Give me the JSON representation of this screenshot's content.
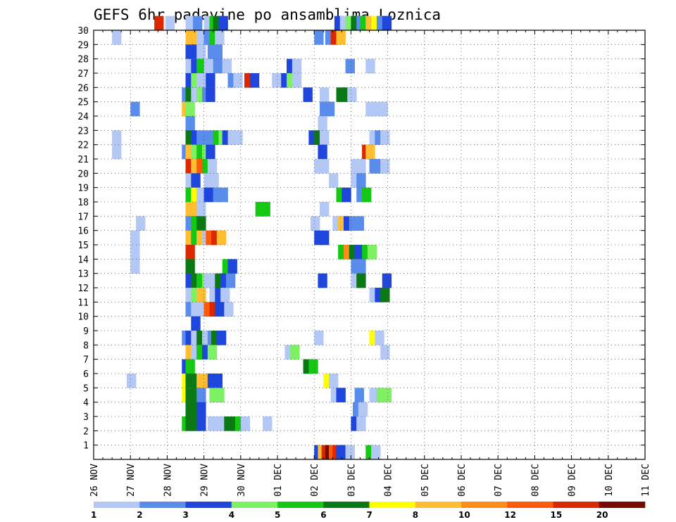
{
  "chart_data": {
    "type": "heatmap",
    "title": "GEFS 6hr padavine po ansamblima Loznica",
    "xlabel": "",
    "ylabel": "",
    "x_tick_labels": [
      "26 NOV",
      "27 NOV",
      "28 NOV",
      "29 NOV",
      "30 NOV",
      "01 DEC",
      "02 DEC",
      "03 DEC",
      "04 DEC",
      "05 DEC",
      "06 DEC",
      "07 DEC",
      "08 DEC",
      "09 DEC",
      "10 DEC",
      "11 DEC"
    ],
    "y_tick_labels": [
      "1",
      "2",
      "3",
      "4",
      "5",
      "6",
      "7",
      "8",
      "9",
      "10",
      "11",
      "12",
      "13",
      "14",
      "15",
      "16",
      "17",
      "18",
      "19",
      "20",
      "21",
      "22",
      "23",
      "24",
      "25",
      "26",
      "27",
      "28",
      "29",
      "30"
    ],
    "x_steps_per_day": 4,
    "y_range": [
      0,
      30
    ],
    "grid": true,
    "legend_position": "bottom",
    "color_scale": [
      {
        "label": "1",
        "color": "#b4c8f5"
      },
      {
        "label": "2",
        "color": "#5a8ceb"
      },
      {
        "label": "3",
        "color": "#1e46dc"
      },
      {
        "label": "4",
        "color": "#7df064"
      },
      {
        "label": "5",
        "color": "#14c814"
      },
      {
        "label": "6",
        "color": "#0a7814"
      },
      {
        "label": "7",
        "color": "#ffff00"
      },
      {
        "label": "8",
        "color": "#ffbe32"
      },
      {
        "label": "10",
        "color": "#ff8c14"
      },
      {
        "label": "12",
        "color": "#ff5a0a"
      },
      {
        "label": "15",
        "color": "#dc2800"
      },
      {
        "label": "20",
        "color": "#780a00"
      }
    ],
    "cells": [
      [
        6.6,
        30,
        10
      ],
      [
        7.8,
        30,
        0
      ],
      [
        10,
        30,
        0
      ],
      [
        10.8,
        30,
        1
      ],
      [
        12,
        30,
        0
      ],
      [
        12.6,
        30,
        4
      ],
      [
        13,
        30,
        5
      ],
      [
        13.6,
        30,
        2
      ],
      [
        26.2,
        30,
        2
      ],
      [
        26.8,
        30,
        0
      ],
      [
        27.4,
        30,
        3
      ],
      [
        28,
        30,
        5
      ],
      [
        28.6,
        30,
        1
      ],
      [
        29,
        30,
        4
      ],
      [
        29.6,
        30,
        7
      ],
      [
        30.2,
        30,
        6
      ],
      [
        30.8,
        30,
        1
      ],
      [
        31.4,
        30,
        2
      ],
      [
        2,
        29,
        0
      ],
      [
        10,
        29,
        7
      ],
      [
        10.6,
        29,
        7
      ],
      [
        11.2,
        29,
        0
      ],
      [
        12,
        29,
        1
      ],
      [
        12.6,
        29,
        4
      ],
      [
        13.2,
        29,
        0
      ],
      [
        24,
        29,
        1
      ],
      [
        25.2,
        29,
        1
      ],
      [
        25.8,
        29,
        10
      ],
      [
        26.4,
        29,
        7
      ],
      [
        10,
        28,
        2
      ],
      [
        10.6,
        28,
        2
      ],
      [
        11.2,
        28,
        0
      ],
      [
        12.4,
        28,
        1
      ],
      [
        13,
        28,
        1
      ],
      [
        10,
        27,
        0
      ],
      [
        10.6,
        27,
        2
      ],
      [
        11.2,
        27,
        4
      ],
      [
        12,
        27,
        0
      ],
      [
        13,
        27,
        1
      ],
      [
        14,
        27,
        0
      ],
      [
        21,
        27,
        2
      ],
      [
        21.6,
        27,
        0
      ],
      [
        27.4,
        27,
        1
      ],
      [
        29.6,
        27,
        0
      ],
      [
        10,
        26,
        2
      ],
      [
        10.6,
        26,
        3
      ],
      [
        11.2,
        26,
        0
      ],
      [
        12.2,
        26,
        2
      ],
      [
        14.6,
        26,
        1
      ],
      [
        15.2,
        26,
        0
      ],
      [
        16.4,
        26,
        10
      ],
      [
        17,
        26,
        2
      ],
      [
        19.4,
        26,
        0
      ],
      [
        20.4,
        26,
        2
      ],
      [
        21,
        26,
        3
      ],
      [
        21.6,
        26,
        0
      ],
      [
        9.6,
        25,
        1
      ],
      [
        10,
        25,
        5
      ],
      [
        10.6,
        25,
        0
      ],
      [
        11.2,
        25,
        3
      ],
      [
        11.8,
        25,
        1
      ],
      [
        12.2,
        25,
        2
      ],
      [
        22.8,
        25,
        2
      ],
      [
        24.6,
        25,
        0
      ],
      [
        26.4,
        25,
        5
      ],
      [
        27,
        25,
        5
      ],
      [
        27.6,
        25,
        0
      ],
      [
        4,
        24,
        1
      ],
      [
        9.6,
        24,
        7
      ],
      [
        10,
        24,
        3
      ],
      [
        24.6,
        24,
        1
      ],
      [
        25.2,
        24,
        1
      ],
      [
        29.6,
        24,
        0
      ],
      [
        30.4,
        24,
        0
      ],
      [
        31,
        24,
        0
      ],
      [
        10,
        23,
        1
      ],
      [
        24.4,
        23,
        0
      ],
      [
        2,
        22,
        0
      ],
      [
        10,
        22,
        5
      ],
      [
        10.6,
        22,
        2
      ],
      [
        11.2,
        22,
        1
      ],
      [
        11.8,
        22,
        1
      ],
      [
        12.6,
        22,
        1
      ],
      [
        13,
        22,
        4
      ],
      [
        13.6,
        22,
        3
      ],
      [
        14,
        22,
        2
      ],
      [
        14.6,
        22,
        0
      ],
      [
        15.2,
        22,
        0
      ],
      [
        23.4,
        22,
        2
      ],
      [
        24,
        22,
        5
      ],
      [
        24.6,
        22,
        0
      ],
      [
        30,
        22,
        0
      ],
      [
        30.6,
        22,
        1
      ],
      [
        31.2,
        22,
        0
      ],
      [
        2,
        21,
        0
      ],
      [
        9.6,
        21,
        1
      ],
      [
        10,
        21,
        7
      ],
      [
        10.6,
        21,
        3
      ],
      [
        11.2,
        21,
        4
      ],
      [
        11.8,
        21,
        3
      ],
      [
        12.2,
        21,
        2
      ],
      [
        24.4,
        21,
        2
      ],
      [
        29.2,
        21,
        10
      ],
      [
        29.6,
        21,
        7
      ],
      [
        10,
        20,
        10
      ],
      [
        10.6,
        20,
        7
      ],
      [
        11.2,
        20,
        9
      ],
      [
        11.8,
        20,
        4
      ],
      [
        12.4,
        20,
        0
      ],
      [
        24,
        20,
        0
      ],
      [
        24.6,
        20,
        0
      ],
      [
        28,
        20,
        0
      ],
      [
        28.6,
        20,
        0
      ],
      [
        30,
        20,
        1
      ],
      [
        30.6,
        20,
        1
      ],
      [
        31.2,
        20,
        0
      ],
      [
        10,
        19,
        0
      ],
      [
        10.6,
        19,
        2
      ],
      [
        12,
        19,
        0
      ],
      [
        12.6,
        19,
        0
      ],
      [
        25.6,
        19,
        0
      ],
      [
        28,
        19,
        0
      ],
      [
        28.6,
        19,
        1
      ],
      [
        10,
        18,
        4
      ],
      [
        10.6,
        18,
        6
      ],
      [
        11.2,
        18,
        0
      ],
      [
        12,
        18,
        2
      ],
      [
        13,
        18,
        1
      ],
      [
        13.6,
        18,
        1
      ],
      [
        26.4,
        18,
        4
      ],
      [
        27,
        18,
        2
      ],
      [
        28.6,
        18,
        1
      ],
      [
        29.2,
        18,
        4
      ],
      [
        10,
        17,
        7
      ],
      [
        10.6,
        17,
        7
      ],
      [
        11.2,
        17,
        0
      ],
      [
        17.6,
        17,
        4
      ],
      [
        18.2,
        17,
        4
      ],
      [
        24.6,
        17,
        0
      ],
      [
        10,
        16,
        1
      ],
      [
        10.6,
        16,
        4
      ],
      [
        11.2,
        16,
        5
      ],
      [
        4.6,
        16,
        0
      ],
      [
        23.6,
        16,
        0
      ],
      [
        26,
        16,
        0
      ],
      [
        26.6,
        16,
        7
      ],
      [
        27.2,
        16,
        2
      ],
      [
        27.8,
        16,
        1
      ],
      [
        28.4,
        16,
        1
      ],
      [
        4,
        15,
        0
      ],
      [
        10,
        15,
        7
      ],
      [
        10.6,
        15,
        4
      ],
      [
        11.2,
        15,
        7
      ],
      [
        11.8,
        15,
        0
      ],
      [
        12.2,
        15,
        9
      ],
      [
        12.8,
        15,
        10
      ],
      [
        13.4,
        15,
        7
      ],
      [
        24,
        15,
        2
      ],
      [
        24.6,
        15,
        2
      ],
      [
        4,
        14,
        0
      ],
      [
        10,
        14,
        10
      ],
      [
        26.6,
        14,
        4
      ],
      [
        27.2,
        14,
        8
      ],
      [
        27.8,
        14,
        5
      ],
      [
        28.4,
        14,
        2
      ],
      [
        29.2,
        14,
        4
      ],
      [
        29.8,
        14,
        3
      ],
      [
        4,
        13,
        0
      ],
      [
        10,
        13,
        5
      ],
      [
        14,
        13,
        4
      ],
      [
        14.6,
        13,
        2
      ],
      [
        28,
        13,
        1
      ],
      [
        28.6,
        13,
        1
      ],
      [
        10,
        12,
        2
      ],
      [
        10.6,
        12,
        5
      ],
      [
        11.2,
        12,
        4
      ],
      [
        11.8,
        12,
        3
      ],
      [
        12,
        12,
        0
      ],
      [
        12.6,
        12,
        0
      ],
      [
        13.2,
        12,
        5
      ],
      [
        13.8,
        12,
        2
      ],
      [
        14.4,
        12,
        1
      ],
      [
        24.4,
        12,
        2
      ],
      [
        28,
        12,
        0
      ],
      [
        28.6,
        12,
        5
      ],
      [
        31.4,
        12,
        2
      ],
      [
        10,
        11,
        0
      ],
      [
        10.6,
        11,
        3
      ],
      [
        11.2,
        11,
        7
      ],
      [
        12.6,
        11,
        0
      ],
      [
        13.2,
        11,
        2
      ],
      [
        13.8,
        11,
        0
      ],
      [
        30,
        11,
        0
      ],
      [
        30.6,
        11,
        2
      ],
      [
        31.2,
        11,
        5
      ],
      [
        10,
        10,
        1
      ],
      [
        10.6,
        10,
        0
      ],
      [
        11.2,
        10,
        0
      ],
      [
        12,
        10,
        9
      ],
      [
        12.6,
        10,
        10
      ],
      [
        13.2,
        10,
        2
      ],
      [
        14.2,
        10,
        0
      ],
      [
        10.6,
        9,
        2
      ],
      [
        9.6,
        8,
        1
      ],
      [
        10,
        8,
        2
      ],
      [
        10.6,
        8,
        0
      ],
      [
        11.2,
        8,
        5
      ],
      [
        11.8,
        8,
        0
      ],
      [
        12.4,
        8,
        1
      ],
      [
        12.8,
        8,
        5
      ],
      [
        13.4,
        8,
        2
      ],
      [
        24,
        8,
        0
      ],
      [
        30,
        8,
        6
      ],
      [
        30.6,
        8,
        0
      ],
      [
        10,
        7,
        7
      ],
      [
        10.6,
        7,
        0
      ],
      [
        11.2,
        7,
        4
      ],
      [
        11.8,
        7,
        2
      ],
      [
        12.4,
        7,
        3
      ],
      [
        20.8,
        7,
        0
      ],
      [
        21.4,
        7,
        3
      ],
      [
        31.2,
        7,
        0
      ],
      [
        9.6,
        6,
        2
      ],
      [
        10,
        6,
        4
      ],
      [
        22.8,
        6,
        5
      ],
      [
        23.4,
        6,
        4
      ],
      [
        3.6,
        5,
        0
      ],
      [
        9.6,
        5,
        6
      ],
      [
        10,
        5,
        5
      ],
      [
        10.6,
        5,
        5
      ],
      [
        11.2,
        5,
        7
      ],
      [
        11.8,
        5,
        7
      ],
      [
        12.4,
        5,
        2
      ],
      [
        13,
        5,
        2
      ],
      [
        25,
        5,
        6
      ],
      [
        25.6,
        5,
        0
      ],
      [
        9.6,
        4,
        6
      ],
      [
        10,
        4,
        5
      ],
      [
        10.6,
        4,
        5
      ],
      [
        11.2,
        4,
        1
      ],
      [
        12.6,
        4,
        3
      ],
      [
        13.2,
        4,
        3
      ],
      [
        25.8,
        4,
        0
      ],
      [
        26.4,
        4,
        2
      ],
      [
        28.4,
        4,
        1
      ],
      [
        30,
        4,
        0
      ],
      [
        30.8,
        4,
        3
      ],
      [
        31.4,
        4,
        3
      ],
      [
        10,
        3,
        5
      ],
      [
        10.6,
        3,
        5
      ],
      [
        11.2,
        3,
        2
      ],
      [
        28.2,
        3,
        1
      ],
      [
        28.8,
        3,
        0
      ],
      [
        9.6,
        2,
        4
      ],
      [
        10,
        2,
        5
      ],
      [
        10.6,
        2,
        5
      ],
      [
        11.2,
        2,
        2
      ],
      [
        12.4,
        2,
        0
      ],
      [
        13,
        2,
        0
      ],
      [
        13.6,
        2,
        0
      ],
      [
        14.2,
        2,
        5
      ],
      [
        14.8,
        2,
        5
      ],
      [
        15.4,
        2,
        4
      ],
      [
        16,
        2,
        0
      ],
      [
        18.4,
        2,
        0
      ],
      [
        28,
        2,
        2
      ],
      [
        28.6,
        2,
        0
      ],
      [
        24,
        0,
        2
      ],
      [
        24.4,
        0,
        7
      ],
      [
        24.8,
        0,
        10
      ],
      [
        25.2,
        0,
        11
      ],
      [
        25.6,
        0,
        9
      ],
      [
        26,
        0,
        10
      ],
      [
        26.4,
        0,
        2
      ],
      [
        26.8,
        0,
        2
      ],
      [
        27.4,
        0,
        0
      ],
      [
        29.6,
        0,
        4
      ],
      [
        30.2,
        0,
        0
      ]
    ]
  }
}
